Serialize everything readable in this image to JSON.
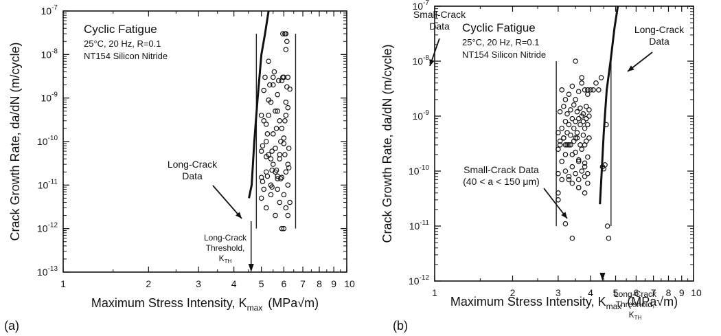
{
  "chart_data": [
    {
      "type": "scatter",
      "panel_label": "(a)",
      "xlabel": "Maximum Stress Intensity, K",
      "xlabel_sub": "max",
      "xlabel_unit": "(MPa√m)",
      "ylabel": "Crack Growth Rate, da/dN (m/cycle)",
      "xscale": "log",
      "yscale": "log",
      "xlim": [
        1,
        10
      ],
      "ylim": [
        1e-13,
        1e-07
      ],
      "x_tick_labels": [
        "1",
        "2",
        "3",
        "4",
        "5",
        "6",
        "7",
        "8",
        "9",
        "10"
      ],
      "y_tick_labels": [
        {
          "exp": "-13"
        },
        {
          "exp": "-12"
        },
        {
          "exp": "-11"
        },
        {
          "exp": "-10"
        },
        {
          "exp": "-9"
        },
        {
          "exp": "-8"
        },
        {
          "exp": "-7"
        }
      ],
      "title": "Cyclic Fatigue",
      "conditions": [
        "25°C, 20 Hz, R=0.1",
        "NT154 Silicon Nitride"
      ],
      "annotations": {
        "long_crack": [
          "Long-Crack",
          "Data"
        ],
        "small_crack": [
          "Small-Crack",
          "Data"
        ],
        "threshold": [
          "Long-Crack",
          "Threshold,",
          "K"
        ],
        "threshold_sub": "TH"
      },
      "threshold_x": 4.6,
      "long_crack_curve": {
        "x": [
          4.52,
          4.62,
          4.72,
          4.85,
          5.0,
          5.15,
          5.3
        ],
        "y": [
          5e-12,
          1e-11,
          1e-10,
          1e-09,
          1e-08,
          3e-08,
          1e-07
        ]
      },
      "scatter_band": {
        "x_range": [
          4.8,
          6.6
        ],
        "y_range": [
          1e-12,
          3e-08
        ]
      },
      "series": [
        {
          "x": [
            5.0,
            5.1,
            5.2,
            5.3,
            5.4,
            5.5,
            5.6,
            5.7,
            5.8,
            5.9,
            6.0,
            6.1,
            6.2,
            6.3,
            5.05,
            5.25,
            5.45,
            5.65,
            5.85,
            6.05,
            6.25,
            5.0,
            5.2,
            5.4,
            5.6,
            5.8,
            6.0,
            6.2,
            5.1,
            5.3,
            5.5,
            5.7,
            5.9,
            6.1,
            6.3,
            5.0,
            5.2,
            5.4,
            5.6,
            5.8,
            6.0,
            6.2,
            5.15,
            5.35,
            5.55,
            5.75,
            5.95,
            6.15,
            5.05,
            5.25,
            5.45,
            5.65,
            5.85,
            6.05,
            6.25,
            5.1,
            5.3,
            5.5,
            5.7,
            5.9,
            6.1,
            5.0,
            5.2,
            5.4,
            5.6,
            5.8,
            6.0,
            6.2,
            5.3,
            5.5,
            5.7,
            5.9,
            6.1,
            5.2,
            5.45,
            5.7,
            6.0,
            6.1,
            6.15,
            6.05,
            6.1,
            5.95,
            6.2
          ],
          "y": [
            1.5e-11,
            8e-12,
            2e-11,
            5e-11,
            1e-11,
            3e-11,
            2e-11,
            8e-12,
            4e-11,
            1.5e-11,
            6e-12,
            2e-11,
            1e-11,
            4e-12,
            8e-11,
            1.5e-10,
            6e-11,
            2e-10,
            1e-10,
            3e-10,
            7e-11,
            4e-10,
            2.5e-10,
            8e-10,
            5e-10,
            3e-10,
            1.2e-10,
            6e-10,
            1.5e-09,
            9e-10,
            2e-09,
            1.2e-09,
            2.5e-09,
            8e-10,
            1.6e-09,
            5e-12,
            3e-12,
            6e-12,
            2e-12,
            4e-12,
            1e-12,
            2e-12,
            3e-09,
            2e-09,
            4e-09,
            2.5e-09,
            3e-09,
            1.8e-09,
            1.2e-11,
            1.6e-11,
            9e-12,
            2.2e-11,
            1.4e-11,
            5e-11,
            2.5e-11,
            3e-10,
            4e-10,
            1.5e-10,
            5e-10,
            2e-10,
            4e-10,
            6e-11,
            1e-10,
            4e-11,
            7e-11,
            5e-11,
            9e-11,
            3e-11,
            7e-09,
            3e-09,
            1.4e-11,
            1e-12,
            3e-12,
            4.5e-11,
            2.2e-11,
            1.6e-11,
            3e-09,
            1.3e-08,
            2e-08,
            3e-08,
            3e-08,
            3e-08,
            3e-09
          ]
        }
      ]
    },
    {
      "type": "scatter",
      "panel_label": "(b)",
      "xlabel": "Maximum Stress Intensity, K",
      "xlabel_sub": "max",
      "xlabel_unit": "(MPa√m)",
      "ylabel": "Crack Growth Rate, da/dN (m/cycle)",
      "xscale": "log",
      "yscale": "log",
      "xlim": [
        1,
        10
      ],
      "ylim": [
        1e-12,
        1e-07
      ],
      "x_tick_labels": [
        "1",
        "2",
        "3",
        "4",
        "5",
        "6",
        "7",
        "8",
        "9",
        "10"
      ],
      "y_tick_labels": [
        {
          "exp": "-12"
        },
        {
          "exp": "-11"
        },
        {
          "exp": "-10"
        },
        {
          "exp": "-9"
        },
        {
          "exp": "-8"
        },
        {
          "exp": "-7"
        }
      ],
      "title": "Cyclic Fatigue",
      "conditions": [
        "25°C, 20 Hz, R=0.1",
        "NT154 Silicon Nitride"
      ],
      "annotations": {
        "long_crack": [
          "Long-Crack",
          "Data"
        ],
        "small_crack": [
          "Small-Crack Data",
          "(40 < a < 150 μm)"
        ],
        "threshold": [
          "Long-Crack",
          "Threshold,",
          "K"
        ],
        "threshold_sub": "TH"
      },
      "threshold_x": 4.45,
      "long_crack_curve": {
        "x": [
          4.35,
          4.42,
          4.5,
          4.62,
          4.78,
          4.95,
          5.1
        ],
        "y": [
          2.5e-11,
          1e-10,
          5e-10,
          3e-09,
          1e-08,
          4e-08,
          1e-07
        ]
      },
      "scatter_band": {
        "x_range": [
          2.95,
          4.8
        ],
        "y_range": [
          1e-11,
          1e-08
        ]
      },
      "series": [
        {
          "x": [
            3.0,
            3.05,
            3.1,
            3.15,
            3.2,
            3.25,
            3.3,
            3.35,
            3.4,
            3.45,
            3.5,
            3.55,
            3.6,
            3.65,
            3.7,
            3.75,
            3.8,
            3.85,
            3.9,
            3.95,
            3.0,
            3.1,
            3.2,
            3.3,
            3.4,
            3.5,
            3.6,
            3.7,
            3.8,
            3.9,
            3.05,
            3.15,
            3.25,
            3.35,
            3.45,
            3.55,
            3.65,
            3.75,
            3.85,
            3.95,
            3.0,
            3.1,
            3.2,
            3.3,
            3.4,
            3.5,
            3.6,
            3.7,
            3.8,
            3.9,
            3.05,
            3.15,
            3.25,
            3.35,
            3.45,
            3.55,
            3.65,
            3.75,
            3.85,
            3.95,
            3.1,
            3.2,
            3.3,
            3.4,
            3.5,
            3.6,
            3.7,
            3.8,
            3.9,
            3.0,
            3.2,
            3.4,
            3.6,
            3.8,
            4.0,
            4.2,
            4.4,
            3.5,
            3.7,
            3.9,
            4.1,
            4.3,
            3.4,
            3.6,
            3.8,
            3.0,
            3.3,
            3.6,
            3.9,
            3.2,
            3.5,
            3.8,
            4.45,
            4.5,
            4.55,
            4.6,
            4.65,
            4.7
          ],
          "y": [
            5e-10,
            3e-10,
            6e-10,
            4e-10,
            8e-10,
            5e-10,
            7e-10,
            3e-10,
            9e-10,
            6e-10,
            8e-10,
            5e-10,
            9e-10,
            7e-10,
            1e-09,
            8e-10,
            6e-10,
            9e-10,
            7e-10,
            1e-09,
            2.5e-10,
            1.5e-10,
            2e-10,
            3e-10,
            1.2e-10,
            2.2e-10,
            1.6e-10,
            2.5e-10,
            1.4e-10,
            1.8e-10,
            1.2e-09,
            1.5e-09,
            1.1e-09,
            1.3e-09,
            1.6e-09,
            1.2e-09,
            1.4e-09,
            1.1e-09,
            1.5e-09,
            1.3e-09,
            9e-11,
            7e-11,
            1e-10,
            8e-11,
            6e-11,
            9e-11,
            7e-11,
            1e-10,
            8e-11,
            9e-11,
            3.5e-10,
            4e-10,
            3e-10,
            4.5e-10,
            3.5e-10,
            4e-10,
            3e-10,
            4.5e-10,
            3.5e-10,
            4e-10,
            3e-09,
            2e-09,
            2.5e-09,
            3.5e-09,
            2e-09,
            2.8e-09,
            4e-09,
            3e-09,
            2.5e-09,
            3e-11,
            1.1e-11,
            6e-12,
            5e-11,
            4e-11,
            3e-09,
            4e-09,
            5e-09,
            1e-08,
            5e-09,
            3e-09,
            3e-09,
            3e-09,
            2e-10,
            1.5e-10,
            1.2e-10,
            4e-11,
            7e-11,
            5e-11,
            6e-11,
            3e-10,
            4e-10,
            3e-10,
            1.2e-10,
            1.1e-10,
            1.3e-10,
            7e-10,
            1e-11,
            6e-12
          ]
        }
      ]
    }
  ]
}
